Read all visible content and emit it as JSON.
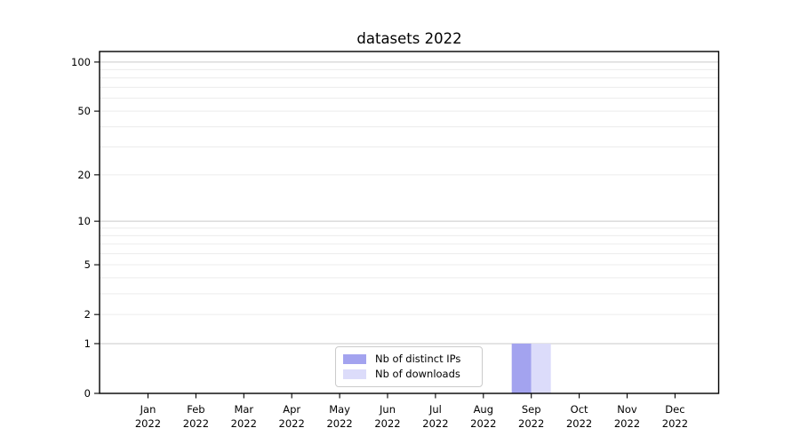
{
  "chart_data": {
    "type": "bar",
    "title": "datasets 2022",
    "categories": [
      "Jan",
      "Feb",
      "Mar",
      "Apr",
      "May",
      "Jun",
      "Jul",
      "Aug",
      "Sep",
      "Oct",
      "Nov",
      "Dec"
    ],
    "x_tick_year": "2022",
    "series": [
      {
        "name": "Nb of distinct IPs",
        "color": "#a3a3ef",
        "values": [
          0,
          0,
          0,
          0,
          0,
          0,
          0,
          0,
          1,
          0,
          0,
          0
        ]
      },
      {
        "name": "Nb of downloads",
        "color": "#dcdcfa",
        "values": [
          0,
          0,
          0,
          0,
          0,
          0,
          0,
          0,
          1,
          0,
          0,
          0
        ]
      }
    ],
    "xlabel": "",
    "ylabel": "",
    "yscale": "log1p",
    "ylim": [
      0,
      116
    ],
    "yticks": [
      0,
      1,
      2,
      5,
      10,
      20,
      50,
      100
    ],
    "gridlines": {
      "major": [
        1,
        10,
        100
      ],
      "minor": [
        2,
        3,
        4,
        5,
        6,
        7,
        8,
        9,
        20,
        30,
        40,
        50,
        60,
        70,
        80,
        90
      ]
    },
    "grid": true,
    "legend": {
      "position": "lower center-left inside plot",
      "entries": [
        "Nb of distinct IPs",
        "Nb of downloads"
      ]
    },
    "colors": {
      "background": "#ffffff",
      "spine": "#000000",
      "text": "#000000",
      "grid_major": "#c9c9c9",
      "grid_minor": "#ececec",
      "legend_border": "#cbcbcb"
    }
  }
}
